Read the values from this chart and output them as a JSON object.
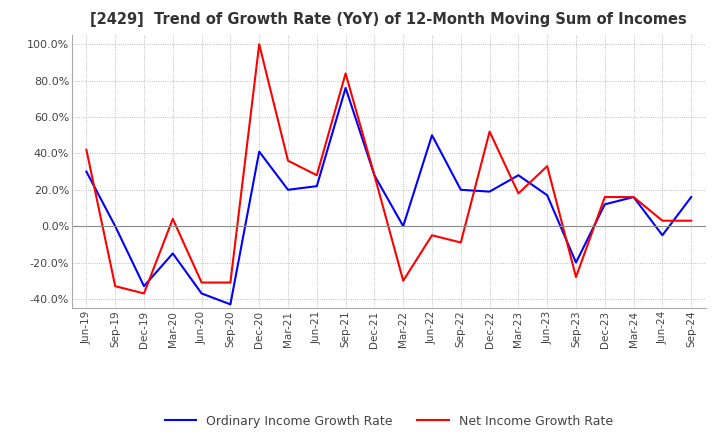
{
  "title": "[2429]  Trend of Growth Rate (YoY) of 12-Month Moving Sum of Incomes",
  "ylim": [
    -0.45,
    1.05
  ],
  "yticks": [
    -0.4,
    -0.2,
    0.0,
    0.2,
    0.4,
    0.6,
    0.8,
    1.0
  ],
  "background_color": "#ffffff",
  "grid_color": "#aaaaaa",
  "legend_labels": [
    "Ordinary Income Growth Rate",
    "Net Income Growth Rate"
  ],
  "line_colors": [
    "#0000ff",
    "#ff0000"
  ],
  "x_labels": [
    "Jun-19",
    "Sep-19",
    "Dec-19",
    "Mar-20",
    "Jun-20",
    "Sep-20",
    "Dec-20",
    "Mar-21",
    "Jun-21",
    "Sep-21",
    "Dec-21",
    "Mar-22",
    "Jun-22",
    "Sep-22",
    "Dec-22",
    "Mar-23",
    "Jun-23",
    "Sep-23",
    "Dec-23",
    "Mar-24",
    "Jun-24",
    "Sep-24"
  ],
  "ordinary_income": [
    0.3,
    0.0,
    -0.33,
    -0.15,
    -0.37,
    -0.43,
    0.41,
    0.2,
    0.22,
    0.76,
    0.28,
    0.0,
    0.5,
    0.2,
    0.19,
    0.28,
    0.17,
    -0.2,
    0.12,
    0.16,
    -0.05,
    0.16
  ],
  "net_income": [
    0.42,
    -0.33,
    -0.37,
    0.04,
    -0.31,
    -0.31,
    1.0,
    0.36,
    0.28,
    0.84,
    0.28,
    -0.3,
    -0.05,
    -0.09,
    0.52,
    0.18,
    0.33,
    -0.28,
    0.16,
    0.16,
    0.03,
    0.03
  ]
}
